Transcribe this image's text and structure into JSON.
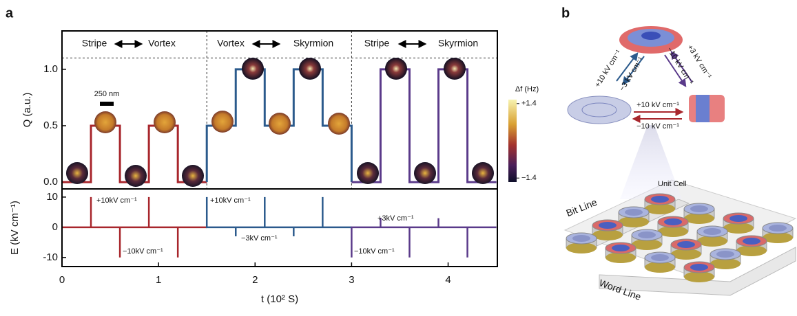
{
  "panel_labels": [
    "a",
    "b"
  ],
  "chart_data": [
    {
      "type": "line",
      "ylabel": "Q (a.u.)",
      "xlim": [
        0,
        4.51
      ],
      "ylim": [
        -0.06,
        1.34
      ],
      "yticks": [
        {
          "value": 0,
          "label": "0.0"
        },
        0.5,
        {
          "value": 1,
          "label": "1.0"
        }
      ],
      "hline": 1.1,
      "vlines": [
        1.5,
        3.0
      ],
      "annotations": [
        [
          "Stripe",
          "Vortex"
        ],
        [
          "Vortex",
          "Skyrmion"
        ],
        [
          "Stripe",
          "Skyrmion"
        ]
      ],
      "scale_bar": "250 nm",
      "series": [
        {
          "color": "#a8262c",
          "x": [
            0,
            0.3,
            0.3,
            0.6,
            0.6,
            0.9,
            0.9,
            1.2,
            1.2,
            1.5
          ],
          "values": [
            0,
            0,
            0.5,
            0.5,
            0,
            0,
            0.5,
            0.5,
            0,
            0
          ]
        },
        {
          "color": "#2b5a8c",
          "x": [
            1.5,
            1.5,
            1.8,
            1.8,
            2.1,
            2.1,
            2.4,
            2.4,
            2.7,
            2.7,
            3.0,
            3.0
          ],
          "values": [
            0,
            0.5,
            0.5,
            1,
            1,
            0.5,
            0.5,
            1,
            1,
            0.5,
            0.5,
            0
          ]
        },
        {
          "color": "#5a3a8a",
          "x": [
            3.0,
            3.3,
            3.3,
            3.6,
            3.6,
            3.9,
            3.9,
            4.2,
            4.2,
            4.5
          ],
          "values": [
            0,
            0,
            1,
            1,
            0,
            0,
            1,
            1,
            0,
            0
          ]
        }
      ]
    },
    {
      "type": "line",
      "xlabel": "t (10² S)",
      "ylabel": "E (kV cm⁻¹)",
      "xlim": [
        0,
        4.51
      ],
      "xticks": [
        0,
        1,
        2,
        3,
        4
      ],
      "ylim": [
        -13,
        12.7
      ],
      "yticks": [
        10,
        0,
        -10
      ],
      "annotations": [
        "+10kV cm⁻¹",
        "−10kV cm⁻¹",
        "+10kV cm⁻¹",
        "−3kV cm⁻¹",
        "+3kV cm⁻¹",
        "−10kV cm⁻¹"
      ],
      "series": [
        {
          "color": "#a8262c",
          "x": [
            0,
            0.3,
            0.3,
            0.3,
            0.6,
            0.6,
            0.6,
            0.9,
            0.9,
            0.9,
            1.2,
            1.2,
            1.2,
            1.5
          ],
          "values": [
            0,
            0,
            10,
            0,
            0,
            -10,
            0,
            0,
            10,
            0,
            0,
            -10,
            0,
            0
          ]
        },
        {
          "color": "#2b5a8c",
          "x": [
            1.5,
            1.5,
            1.5,
            1.8,
            1.8,
            1.8,
            2.1,
            2.1,
            2.1,
            2.4,
            2.4,
            2.4,
            2.7,
            2.7,
            2.7,
            3.0
          ],
          "values": [
            0,
            10,
            0,
            0,
            -3,
            0,
            0,
            10,
            0,
            0,
            -3,
            0,
            0,
            10,
            0,
            0
          ]
        },
        {
          "color": "#5a3a8a",
          "x": [
            3.0,
            3.0,
            3.0,
            3.3,
            3.3,
            3.3,
            3.6,
            3.6,
            3.6,
            3.9,
            3.9,
            3.9,
            4.2,
            4.2,
            4.2,
            4.5
          ],
          "values": [
            0,
            -10,
            0,
            0,
            3,
            0,
            0,
            -10,
            0,
            0,
            3,
            0,
            0,
            -10,
            0,
            0
          ]
        }
      ]
    }
  ],
  "colorbar": {
    "label": "Δf (Hz)",
    "lim": [
      -1.55,
      1.55
    ],
    "ticks": [
      {
        "value": 1.4,
        "label": "+1.4"
      },
      {
        "value": -1.4,
        "label": "−1.4"
      }
    ]
  },
  "diagram": {
    "transitions": [
      "+10 kV cm⁻¹",
      "−3 kV cm⁻¹",
      "−10 kV cm⁻¹",
      "+3 kV cm⁻¹",
      "+10 kV cm⁻¹",
      "−10 kV cm⁻¹"
    ],
    "unit_cell": "Unit Cell",
    "bit_line": "Bit Line",
    "word_line": "Word Line"
  }
}
